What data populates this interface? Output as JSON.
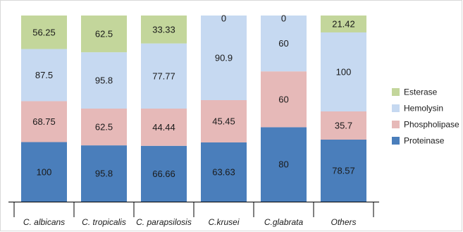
{
  "chart_data": {
    "type": "bar",
    "stacked": true,
    "categories": [
      "C. albicans",
      "C. tropicalis",
      "C. parapsilosis",
      "C.krusei",
      "C.glabrata",
      "Others"
    ],
    "series": [
      {
        "name": "Proteinase",
        "color": "#4a7ebb",
        "values": [
          100,
          95.8,
          66.66,
          63.63,
          80,
          78.57
        ]
      },
      {
        "name": "Phospholipase",
        "color": "#e6b9b8",
        "values": [
          68.75,
          62.5,
          44.44,
          45.45,
          60,
          35.7
        ]
      },
      {
        "name": "Hemolysin",
        "color": "#c6d9f1",
        "values": [
          87.5,
          95.8,
          77.77,
          90.9,
          60,
          100
        ]
      },
      {
        "name": "Esterase",
        "color": "#c3d69b",
        "values": [
          56.25,
          62.5,
          33.33,
          0,
          0,
          21.42
        ]
      }
    ],
    "legend_order": [
      "Esterase",
      "Hemolysin",
      "Phospholipase",
      "Proteinase"
    ],
    "legend_position": "right",
    "grid": false,
    "axis_color": "#000000"
  }
}
